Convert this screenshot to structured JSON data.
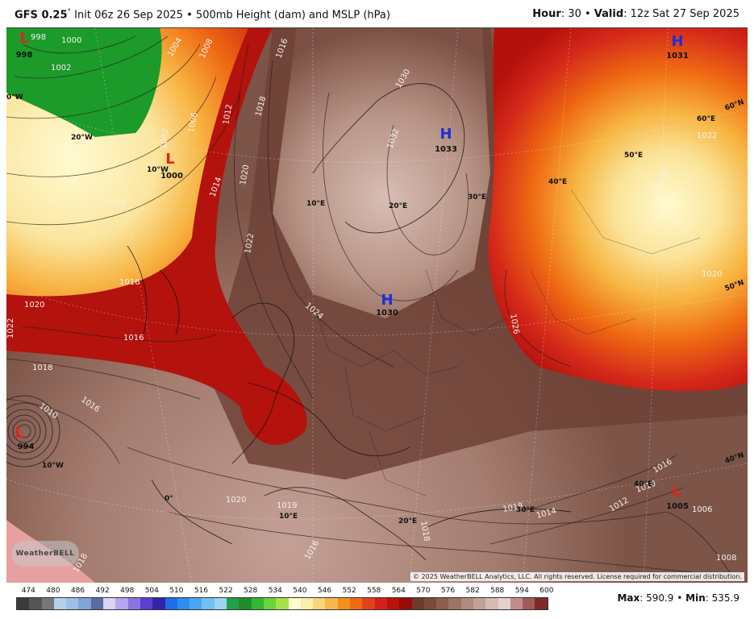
{
  "header": {
    "model": "GFS 0.25",
    "degree": "°",
    "init": "Init 06z 26 Sep 2025",
    "sep": "•",
    "product": "500mb Height (dam) and MSLP (hPa)",
    "hour_label": "Hour",
    "hour_value": ": 30",
    "valid_label": "Valid",
    "valid_value": ": 12z Sat 27 Sep 2025"
  },
  "map": {
    "pressure_centers": [
      {
        "type": "L",
        "value": "998",
        "color": "#e0241c"
      },
      {
        "type": "L",
        "value": "1000",
        "color": "#e0241c"
      },
      {
        "type": "H",
        "value": "1033",
        "color": "#1a2fd6"
      },
      {
        "type": "H",
        "value": "1030",
        "color": "#1a2fd6"
      },
      {
        "type": "H",
        "value": "1031",
        "color": "#1a2fd6"
      },
      {
        "type": "L",
        "value": "994",
        "color": "#e0241c"
      },
      {
        "type": "L",
        "value": "1005",
        "color": "#e0241c"
      }
    ],
    "isobar_labels": [
      "998",
      "1000",
      "1002",
      "1004",
      "1008",
      "1016",
      "1012",
      "1018",
      "1006",
      "1002",
      "1010",
      "1014",
      "1020",
      "1022",
      "1024",
      "1026",
      "1032",
      "1030",
      "1022",
      "1020",
      "1020",
      "1016",
      "1018",
      "1022",
      "1016",
      "1010",
      "1020",
      "1018",
      "1019",
      "1016",
      "1018",
      "1014",
      "1016",
      "1012",
      "1010",
      "1006",
      "1008",
      "1018",
      "1016",
      "1018"
    ],
    "graticule_labels": [
      "0°W",
      "20°W",
      "10°W",
      "10°E",
      "20°E",
      "30°E",
      "40°E",
      "50°E",
      "60°E",
      "60°N",
      "50°N",
      "40°N",
      "10°W",
      "0°",
      "10°E",
      "20°E",
      "30°E",
      "40°E"
    ],
    "copyright": "© 2025 WeatherBELL Analytics, LLC. All rights reserved. License required for commercial distribution.",
    "logo_text": "WeatherBELL"
  },
  "legend": {
    "labels": [
      "474",
      "480",
      "486",
      "492",
      "498",
      "504",
      "510",
      "516",
      "522",
      "528",
      "534",
      "540",
      "546",
      "552",
      "558",
      "564",
      "570",
      "576",
      "582",
      "588",
      "594",
      "600"
    ],
    "colors": [
      "#3a3a3a",
      "#555555",
      "#777777",
      "#b4d0ec",
      "#9cc0e6",
      "#7fa4d6",
      "#5a6ca4",
      "#d6d6f0",
      "#b7a6ee",
      "#8a74e2",
      "#5a40d0",
      "#3424a8",
      "#1d6fe4",
      "#2f8cf0",
      "#4aa6f4",
      "#72c0f4",
      "#9cd4f2",
      "#23a04a",
      "#1f8e2a",
      "#33b833",
      "#6cd23e",
      "#a6e24a",
      "#fffccf",
      "#fbeea8",
      "#f8d67c",
      "#f6b84c",
      "#f3901c",
      "#ef6a10",
      "#e3401c",
      "#d41f1a",
      "#b9110c",
      "#9a0a06",
      "#6e3a2c",
      "#7c4a3c",
      "#8c5e50",
      "#9e7466",
      "#b08a7c",
      "#c2a296",
      "#d4bcb2",
      "#e4d2cc",
      "#c18d8c",
      "#a05a5a",
      "#7e2a2a"
    ],
    "max_label": "Max",
    "max_value": ": 590.9",
    "sep": "•",
    "min_label": "Min",
    "min_value": ": 535.9"
  }
}
